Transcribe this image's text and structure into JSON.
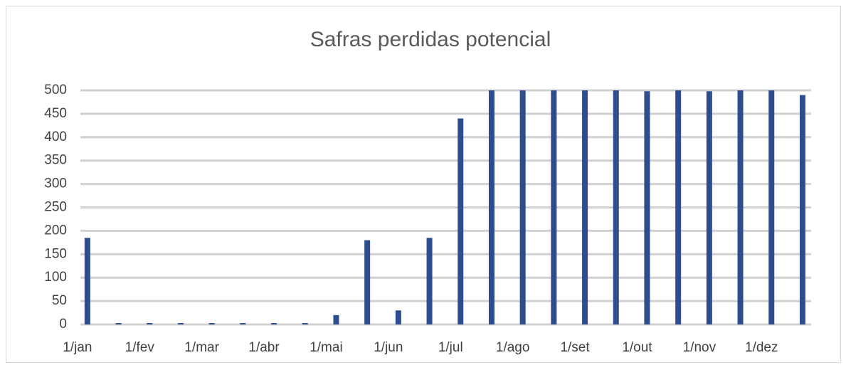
{
  "chart_data": {
    "type": "bar",
    "title": "Safras perdidas potencial",
    "categories": [
      "1/jan",
      null,
      "1/fev",
      null,
      "1/mar",
      null,
      "1/abr",
      null,
      "1/mai",
      null,
      "1/jun",
      null,
      "1/jul",
      null,
      "1/ago",
      null,
      "1/set",
      null,
      "1/out",
      null,
      "1/nov",
      null,
      "1/dez",
      null
    ],
    "values": [
      185,
      3,
      3,
      3,
      3,
      3,
      3,
      3,
      20,
      180,
      30,
      185,
      440,
      500,
      500,
      500,
      500,
      500,
      498,
      500,
      498,
      500,
      500,
      490
    ],
    "color": "#2e4d8c",
    "ylim": [
      0,
      500
    ],
    "yticks": [
      0,
      50,
      100,
      150,
      200,
      250,
      300,
      350,
      400,
      450,
      500
    ],
    "grid": true
  }
}
